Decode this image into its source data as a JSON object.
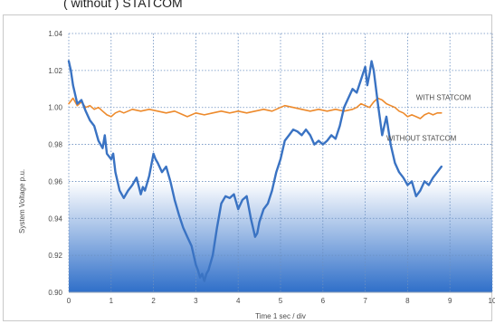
{
  "caption": "( without ) STATCOM",
  "chart_data": {
    "type": "line",
    "xlabel": "Time 1 sec / div",
    "ylabel": "System Voltage p.u.",
    "xlim": [
      0,
      10
    ],
    "ylim": [
      0.9,
      1.04
    ],
    "x_ticks": [
      0,
      1,
      2,
      3,
      4,
      5,
      6,
      7,
      8,
      9,
      10
    ],
    "y_ticks": [
      0.9,
      0.92,
      0.94,
      0.96,
      0.98,
      1.0,
      1.02,
      1.04
    ],
    "x_tick_labels": [
      "0",
      "1",
      "2",
      "3",
      "4",
      "5",
      "6",
      "7",
      "8",
      "9",
      "10"
    ],
    "y_tick_labels": [
      "0.90",
      "0.92",
      "0.94",
      "0.96",
      "0.98",
      "1.00",
      "1.02",
      "1.04"
    ],
    "grid": true,
    "background_gradient": {
      "from_value": 0.96,
      "to_value": 0.9,
      "top_color": "#ffffff",
      "bottom_color": "#2f6fc9"
    },
    "series": [
      {
        "name": "WITH STATCOM",
        "color": "#ed8a2c",
        "x": [
          0,
          0.1,
          0.2,
          0.3,
          0.4,
          0.5,
          0.6,
          0.7,
          0.8,
          0.9,
          1.0,
          1.1,
          1.2,
          1.3,
          1.5,
          1.7,
          1.9,
          2.1,
          2.3,
          2.5,
          2.7,
          2.8,
          3.0,
          3.2,
          3.4,
          3.6,
          3.8,
          4.0,
          4.2,
          4.4,
          4.6,
          4.8,
          5.0,
          5.1,
          5.3,
          5.5,
          5.7,
          5.9,
          6.1,
          6.3,
          6.5,
          6.7,
          6.8,
          6.9,
          7.0,
          7.1,
          7.2,
          7.3,
          7.4,
          7.5,
          7.6,
          7.7,
          7.8,
          7.9,
          8.0,
          8.1,
          8.2,
          8.3,
          8.4,
          8.5,
          8.6,
          8.7,
          8.8
        ],
        "values": [
          1.002,
          1.005,
          1.001,
          1.003,
          1.0,
          1.001,
          0.999,
          1.0,
          0.998,
          0.996,
          0.995,
          0.997,
          0.998,
          0.997,
          0.999,
          0.998,
          0.999,
          0.998,
          0.997,
          0.998,
          0.996,
          0.995,
          0.997,
          0.996,
          0.997,
          0.998,
          0.997,
          0.998,
          0.997,
          0.998,
          0.999,
          0.998,
          1.0,
          1.001,
          1.0,
          0.999,
          0.998,
          0.999,
          0.998,
          0.999,
          0.998,
          0.999,
          1.0,
          1.002,
          1.001,
          1.0,
          1.003,
          1.005,
          1.004,
          1.002,
          1.001,
          1.0,
          0.998,
          0.997,
          0.995,
          0.996,
          0.995,
          0.994,
          0.996,
          0.997,
          0.996,
          0.997,
          0.997
        ]
      },
      {
        "name": "WITHOUT STATCOM",
        "color": "#3a73c3",
        "x": [
          0,
          0.05,
          0.1,
          0.2,
          0.3,
          0.4,
          0.5,
          0.6,
          0.7,
          0.8,
          0.85,
          0.9,
          1.0,
          1.05,
          1.1,
          1.2,
          1.3,
          1.4,
          1.5,
          1.6,
          1.7,
          1.75,
          1.8,
          1.9,
          2.0,
          2.05,
          2.1,
          2.2,
          2.3,
          2.4,
          2.5,
          2.6,
          2.7,
          2.8,
          2.9,
          3.0,
          3.05,
          3.1,
          3.15,
          3.2,
          3.25,
          3.3,
          3.4,
          3.5,
          3.6,
          3.7,
          3.8,
          3.9,
          4.0,
          4.1,
          4.2,
          4.3,
          4.4,
          4.45,
          4.5,
          4.6,
          4.7,
          4.8,
          4.9,
          5.0,
          5.1,
          5.2,
          5.3,
          5.4,
          5.5,
          5.6,
          5.7,
          5.8,
          5.9,
          6.0,
          6.1,
          6.2,
          6.3,
          6.4,
          6.5,
          6.6,
          6.7,
          6.8,
          6.9,
          7.0,
          7.05,
          7.1,
          7.15,
          7.2,
          7.3,
          7.4,
          7.5,
          7.6,
          7.7,
          7.8,
          7.9,
          8.0,
          8.1,
          8.2,
          8.3,
          8.4,
          8.5,
          8.6,
          8.7,
          8.8
        ],
        "values": [
          1.025,
          1.02,
          1.012,
          1.002,
          1.004,
          0.998,
          0.993,
          0.99,
          0.982,
          0.978,
          0.985,
          0.975,
          0.972,
          0.975,
          0.965,
          0.955,
          0.951,
          0.955,
          0.958,
          0.962,
          0.953,
          0.957,
          0.955,
          0.963,
          0.975,
          0.972,
          0.97,
          0.965,
          0.968,
          0.96,
          0.95,
          0.942,
          0.935,
          0.93,
          0.925,
          0.915,
          0.912,
          0.908,
          0.91,
          0.906,
          0.91,
          0.912,
          0.92,
          0.935,
          0.948,
          0.952,
          0.951,
          0.953,
          0.945,
          0.95,
          0.952,
          0.94,
          0.93,
          0.932,
          0.938,
          0.945,
          0.948,
          0.955,
          0.965,
          0.972,
          0.982,
          0.985,
          0.988,
          0.987,
          0.985,
          0.988,
          0.985,
          0.98,
          0.982,
          0.98,
          0.982,
          0.985,
          0.983,
          0.99,
          1.0,
          1.005,
          1.01,
          1.008,
          1.015,
          1.022,
          1.012,
          1.018,
          1.025,
          1.02,
          1.002,
          0.985,
          0.995,
          0.98,
          0.97,
          0.965,
          0.962,
          0.958,
          0.96,
          0.952,
          0.955,
          0.96,
          0.958,
          0.962,
          0.965,
          0.968
        ]
      }
    ],
    "annotations": [
      {
        "text": "WITH STATCOM",
        "x": 8.2,
        "y": 1.004,
        "color": "#ed8a2c"
      },
      {
        "text": "WITHOUT STATCOM",
        "x": 7.5,
        "y": 0.982,
        "color": "#3a73c3"
      }
    ]
  }
}
